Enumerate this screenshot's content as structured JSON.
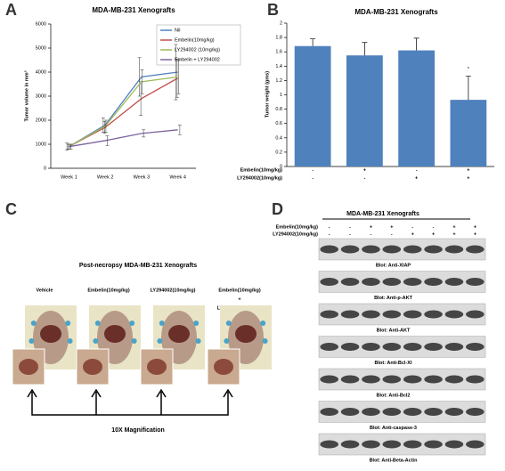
{
  "panel_letters": [
    "A",
    "B",
    "C",
    "D"
  ],
  "chart_data": [
    {
      "type": "line",
      "title": "MDA-MB-231 Xenografts",
      "y_label": "Tumor volume in mm³",
      "categories": [
        "Week 1",
        "Week 2",
        "Week 3",
        "Week 4"
      ],
      "ylim": [
        0,
        6000
      ],
      "yticks": [
        0,
        1000,
        2000,
        3000,
        4000,
        5000,
        6000
      ],
      "legend": "top-right",
      "series": [
        {
          "name": "Nil",
          "color": "#4f81bd",
          "values": [
            900,
            1800,
            3800,
            4000
          ],
          "errors": [
            150,
            300,
            800,
            1150
          ]
        },
        {
          "name": "Embelin(10mg/kg)",
          "color": "#c0504d",
          "values": [
            900,
            1700,
            2900,
            3750
          ],
          "errors": [
            100,
            250,
            700,
            800
          ]
        },
        {
          "name": "LY294002 (10mg/kg)",
          "color": "#9bbb59",
          "values": [
            900,
            1750,
            3600,
            3800
          ],
          "errors": [
            100,
            250,
            500,
            700
          ]
        },
        {
          "name": "Embelin + LY294002",
          "color": "#8064a2",
          "values": [
            900,
            1150,
            1450,
            1600
          ],
          "errors": [
            100,
            200,
            150,
            200
          ]
        }
      ]
    },
    {
      "type": "bar",
      "title": "MDA-MB-231 Xenografts",
      "y_label": "Tumor weight (gms)",
      "values": [
        1.68,
        1.55,
        1.62,
        0.93
      ],
      "errors": [
        0.1,
        0.18,
        0.17,
        0.33
      ],
      "color": "#4f81bd",
      "annotations": [
        null,
        null,
        null,
        "*"
      ],
      "ylim": [
        0,
        2
      ],
      "yticks": [
        0,
        0.2,
        0.4,
        0.6,
        0.8,
        1,
        1.2,
        1.4,
        1.6,
        1.8,
        2
      ],
      "treatment_rows": [
        {
          "label": "Embelin(10mg/kg)",
          "signs": [
            "-",
            "+",
            "-",
            "+"
          ]
        },
        {
          "label": "LY294002(10mg/kg)",
          "signs": [
            "-",
            "-",
            "+",
            "+"
          ]
        }
      ]
    }
  ],
  "panel_c": {
    "title": "Post-necropsy MDA-MB-231 Xenografts",
    "groups": [
      [
        "Vehicle"
      ],
      [
        "Embelin(10mg/kg)"
      ],
      [
        "LY294002(10mg/kg)"
      ],
      [
        "Embelin(10mg/kg)",
        "+",
        "LY294002(10mg/kg)"
      ]
    ],
    "caption": "10X Magnification"
  },
  "panel_d": {
    "title": "MDA-MB-231 Xenografts",
    "treatment_rows": [
      {
        "label": "Embelin(10mg/kg)",
        "signs": [
          "-",
          "-",
          "+",
          "+",
          "-",
          "-",
          "+",
          "+"
        ]
      },
      {
        "label": "LY294002(10mg/kg)",
        "signs": [
          "-",
          "-",
          "-",
          "-",
          "+",
          "+",
          "+",
          "+"
        ]
      }
    ],
    "blots": [
      "Blot: Anti-XIAP",
      "Blot: Anti-p-AKT",
      "Blot: Anti-AKT",
      "Blot: Anti-Bcl-XI",
      "Blot: Anti-Bcl2",
      "Blot: Anti-caspase-3",
      "Blot: Anti-Beta-Actin"
    ]
  }
}
